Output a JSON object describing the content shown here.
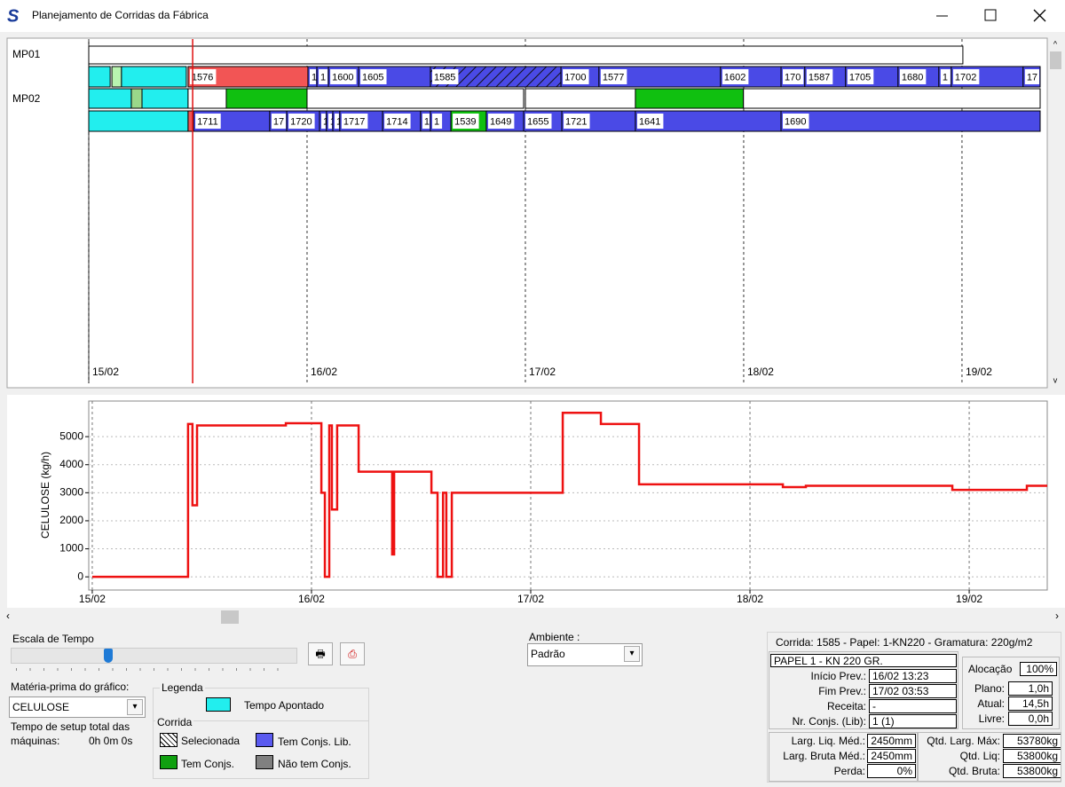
{
  "window": {
    "title": "Planejamento de Corridas da Fábrica"
  },
  "gantt": {
    "xlim": [
      0,
      4.358
    ],
    "xticks": [
      {
        "value": 0,
        "label": "15/02"
      },
      {
        "value": 1,
        "label": "16/02"
      },
      {
        "value": 2,
        "label": "17/02"
      },
      {
        "value": 3,
        "label": "18/02"
      },
      {
        "value": 4,
        "label": "19/02"
      }
    ],
    "current_time": 0.476,
    "rows": [
      {
        "label": "MP01",
        "lanes": [
          [
            {
              "start": 0,
              "end": 4.004,
              "color": "#ffffff"
            }
          ],
          [
            {
              "start": 0,
              "end": 0.098,
              "color": "#22eeee"
            },
            {
              "start": 0.106,
              "end": 0.15,
              "color": "#b8f5b0"
            },
            {
              "start": 0.15,
              "end": 0.447,
              "color": "#22eeee"
            },
            {
              "start": 0.455,
              "end": 1.004,
              "color": "#f25555",
              "label": "1576"
            },
            {
              "start": 1.004,
              "end": 1.045,
              "color": "#4a4ae6",
              "label": "1"
            },
            {
              "start": 1.045,
              "end": 1.098,
              "color": "#4a4ae6",
              "label": "1"
            },
            {
              "start": 1.098,
              "end": 1.236,
              "color": "#4a4ae6",
              "label": "1600"
            },
            {
              "start": 1.236,
              "end": 1.565,
              "color": "#4a4ae6",
              "label": "1605"
            },
            {
              "start": 1.565,
              "end": 2.163,
              "color": "#4a4ae6",
              "label": "1585",
              "hatched": true
            },
            {
              "start": 2.163,
              "end": 2.337,
              "color": "#4a4ae6",
              "label": "1700"
            },
            {
              "start": 2.337,
              "end": 2.894,
              "color": "#4a4ae6",
              "label": "1577"
            },
            {
              "start": 2.894,
              "end": 3.171,
              "color": "#4a4ae6",
              "label": "1602"
            },
            {
              "start": 3.171,
              "end": 3.28,
              "color": "#4a4ae6",
              "label": "170"
            },
            {
              "start": 3.28,
              "end": 3.467,
              "color": "#4a4ae6",
              "label": "1587"
            },
            {
              "start": 3.467,
              "end": 3.707,
              "color": "#4a4ae6",
              "label": "1705"
            },
            {
              "start": 3.707,
              "end": 3.894,
              "color": "#4a4ae6",
              "label": "1680"
            },
            {
              "start": 3.894,
              "end": 3.951,
              "color": "#4a4ae6",
              "label": "1"
            },
            {
              "start": 3.951,
              "end": 4.28,
              "color": "#4a4ae6",
              "label": "1702"
            },
            {
              "start": 4.28,
              "end": 4.358,
              "color": "#4a4ae6",
              "label": "17"
            }
          ]
        ]
      },
      {
        "label": "MP02",
        "lanes": [
          [
            {
              "start": 0,
              "end": 0.195,
              "color": "#22eeee"
            },
            {
              "start": 0.195,
              "end": 0.244,
              "color": "#9ad88a"
            },
            {
              "start": 0.244,
              "end": 0.455,
              "color": "#22eeee"
            },
            {
              "start": 0.455,
              "end": 0.63,
              "color": "#ffffff"
            },
            {
              "start": 0.63,
              "end": 1.0,
              "color": "#10c010"
            },
            {
              "start": 1.0,
              "end": 1.992,
              "color": "#ffffff"
            },
            {
              "start": 2.0,
              "end": 2.504,
              "color": "#ffffff"
            },
            {
              "start": 2.504,
              "end": 2.999,
              "color": "#10c010"
            },
            {
              "start": 2.999,
              "end": 4.358,
              "color": "#ffffff"
            }
          ],
          [
            {
              "start": 0,
              "end": 0.455,
              "color": "#22eeee"
            },
            {
              "start": 0.455,
              "end": 0.48,
              "color": "#f25555"
            },
            {
              "start": 0.48,
              "end": 0.829,
              "color": "#4a4ae6",
              "label": "1711"
            },
            {
              "start": 0.829,
              "end": 0.907,
              "color": "#4a4ae6",
              "label": "17"
            },
            {
              "start": 0.907,
              "end": 1.057,
              "color": "#4a4ae6",
              "label": "1720"
            },
            {
              "start": 1.057,
              "end": 1.089,
              "color": "#4a4ae6",
              "label": "1"
            },
            {
              "start": 1.089,
              "end": 1.118,
              "color": "#4a4ae6",
              "label": "1"
            },
            {
              "start": 1.118,
              "end": 1.15,
              "color": "#4a4ae6",
              "label": "1"
            },
            {
              "start": 1.15,
              "end": 1.346,
              "color": "#4a4ae6",
              "label": "1717"
            },
            {
              "start": 1.346,
              "end": 1.52,
              "color": "#4a4ae6",
              "label": "1714"
            },
            {
              "start": 1.52,
              "end": 1.565,
              "color": "#4a4ae6",
              "label": "1"
            },
            {
              "start": 1.565,
              "end": 1.659,
              "color": "#4a4ae6",
              "label": "1"
            },
            {
              "start": 1.659,
              "end": 1.821,
              "color": "#10c010",
              "label": "1539"
            },
            {
              "start": 1.821,
              "end": 1.992,
              "color": "#4a4ae6",
              "label": "1649"
            },
            {
              "start": 1.992,
              "end": 2.167,
              "color": "#4a4ae6",
              "label": "1655"
            },
            {
              "start": 2.167,
              "end": 2.504,
              "color": "#4a4ae6",
              "label": "1721"
            },
            {
              "start": 2.504,
              "end": 3.171,
              "color": "#4a4ae6",
              "label": "1641"
            },
            {
              "start": 3.171,
              "end": 4.358,
              "color": "#4a4ae6",
              "label": "1690"
            }
          ]
        ]
      }
    ]
  },
  "chart_data": {
    "type": "line",
    "y_label": "CELULOSE (kg/h)",
    "x": [
      0,
      0.437,
      0.437,
      0.457,
      0.457,
      0.478,
      0.478,
      0.883,
      0.883,
      1.045,
      1.045,
      1.061,
      1.061,
      1.081,
      1.081,
      1.093,
      1.093,
      1.117,
      1.117,
      1.215,
      1.215,
      1.368,
      1.368,
      1.377,
      1.377,
      1.547,
      1.547,
      1.575,
      1.575,
      1.6,
      1.6,
      1.615,
      1.615,
      1.64,
      1.64,
      2.146,
      2.146,
      2.32,
      2.32,
      2.494,
      2.494,
      3.15,
      3.15,
      3.255,
      3.255,
      3.923,
      3.923,
      4.263,
      4.263,
      4.356
    ],
    "series": [
      {
        "color": "#ee1111",
        "values": [
          0,
          0,
          5450,
          5450,
          2550,
          2550,
          5400,
          5400,
          5480,
          5480,
          3000,
          3000,
          0,
          0,
          5400,
          5400,
          2400,
          2400,
          5400,
          5400,
          3750,
          3750,
          800,
          800,
          3750,
          3750,
          3000,
          3000,
          0,
          0,
          3000,
          3000,
          0,
          0,
          3000,
          3000,
          5850,
          5850,
          5450,
          5450,
          3300,
          3300,
          3200,
          3200,
          3250,
          3250,
          3100,
          3100,
          3250,
          3250
        ]
      }
    ],
    "xlim": [
      -0.016,
      4.356
    ],
    "xticks": [
      {
        "value": 0,
        "label": "15/02"
      },
      {
        "value": 1,
        "label": "16/02"
      },
      {
        "value": 2,
        "label": "17/02"
      },
      {
        "value": 3,
        "label": "18/02"
      },
      {
        "value": 4,
        "label": "19/02"
      }
    ],
    "ylim": [
      -470,
      6270
    ],
    "yticks": [
      0,
      1000,
      2000,
      3000,
      4000,
      5000
    ],
    "grid": true
  },
  "controls": {
    "time_scale": "Escala de Tempo",
    "material_label": "Matéria-prima do gráfico:",
    "material": "CELULOSE",
    "setup_label_1": "Tempo de setup total das",
    "setup_label_2": "máquinas:",
    "setup_value": "0h 0m 0s",
    "legend_title": "Legenda",
    "legend_time": "Tempo Apontado",
    "legend_group": "Corrida",
    "legend_selected": "Selecionada",
    "legend_lib": "Tem Conjs. Lib.",
    "legend_conj": "Tem Conjs.",
    "legend_none": "Não tem Conjs.",
    "env_label": "Ambiente :",
    "env": "Padrão"
  },
  "info": {
    "header": "Corrida: 1585 - Papel: 1-KN220 - Gramatura: 220g/m2",
    "paper": "PAPEL 1 - KN 220 GR.",
    "fields": [
      [
        "Início Prev.:",
        "16/02 13:23"
      ],
      [
        "Fim Prev.:",
        "17/02 03:53"
      ],
      [
        "Receita:",
        "-"
      ],
      [
        "Nr. Conjs. (Lib):",
        "1 (1)"
      ]
    ],
    "allocation_label": "Alocação",
    "allocation": "100%",
    "hours": [
      [
        "Plano:",
        "1,0h"
      ],
      [
        "Atual:",
        "14,5h"
      ],
      [
        "Livre:",
        "0,0h"
      ]
    ],
    "widths": [
      [
        "Larg. Liq. Méd.:",
        "2450mm"
      ],
      [
        "Larg. Bruta Méd.:",
        "2450mm"
      ],
      [
        "Perda:",
        "0%"
      ]
    ],
    "quantities": [
      [
        "Qtd. Larg. Máx:",
        "53780kg"
      ],
      [
        "Qtd. Liq:",
        "53800kg"
      ],
      [
        "Qtd. Bruta:",
        "53800kg"
      ]
    ]
  }
}
